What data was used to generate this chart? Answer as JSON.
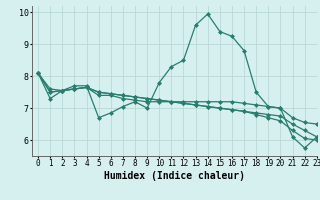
{
  "title": "",
  "xlabel": "Humidex (Indice chaleur)",
  "ylabel": "",
  "bg_color": "#d6f0ef",
  "grid_color": "#b8d8d5",
  "line_color": "#2a7d6e",
  "xlim": [
    -0.5,
    23
  ],
  "ylim": [
    5.5,
    10.2
  ],
  "yticks": [
    6,
    7,
    8,
    9,
    10
  ],
  "xticks": [
    0,
    1,
    2,
    3,
    4,
    5,
    6,
    7,
    8,
    9,
    10,
    11,
    12,
    13,
    14,
    15,
    16,
    17,
    18,
    19,
    20,
    21,
    22,
    23
  ],
  "lines": [
    {
      "x": [
        0,
        1,
        2,
        3,
        4,
        5,
        6,
        7,
        8,
        9,
        10,
        11,
        12,
        13,
        14,
        15,
        16,
        17,
        18,
        19,
        20,
        21,
        22,
        23
      ],
      "y": [
        8.1,
        7.3,
        7.55,
        7.7,
        7.7,
        6.7,
        6.85,
        7.05,
        7.2,
        7.0,
        7.8,
        8.3,
        8.5,
        9.6,
        9.95,
        9.4,
        9.25,
        8.8,
        7.5,
        7.05,
        7.0,
        6.1,
        5.75,
        6.1
      ]
    },
    {
      "x": [
        0,
        1,
        2,
        3,
        4,
        5,
        6,
        7,
        8,
        9,
        10,
        11,
        12,
        13,
        14,
        15,
        16,
        17,
        18,
        19,
        20,
        21,
        22,
        23
      ],
      "y": [
        8.1,
        7.5,
        7.55,
        7.6,
        7.65,
        7.4,
        7.4,
        7.3,
        7.25,
        7.2,
        7.2,
        7.2,
        7.2,
        7.2,
        7.2,
        7.2,
        7.2,
        7.15,
        7.1,
        7.05,
        7.0,
        6.7,
        6.55,
        6.5
      ]
    },
    {
      "x": [
        0,
        1,
        2,
        3,
        4,
        5,
        6,
        7,
        8,
        9,
        10,
        11,
        12,
        13,
        14,
        15,
        16,
        17,
        18,
        19,
        20,
        21,
        22,
        23
      ],
      "y": [
        8.1,
        7.6,
        7.55,
        7.6,
        7.65,
        7.5,
        7.45,
        7.4,
        7.35,
        7.3,
        7.25,
        7.2,
        7.15,
        7.1,
        7.05,
        7.0,
        6.95,
        6.9,
        6.85,
        6.8,
        6.75,
        6.5,
        6.3,
        6.1
      ]
    },
    {
      "x": [
        0,
        1,
        2,
        3,
        4,
        5,
        6,
        7,
        8,
        9,
        10,
        11,
        12,
        13,
        14,
        15,
        16,
        17,
        18,
        19,
        20,
        21,
        22,
        23
      ],
      "y": [
        8.1,
        7.5,
        7.55,
        7.6,
        7.65,
        7.5,
        7.45,
        7.4,
        7.35,
        7.3,
        7.25,
        7.2,
        7.15,
        7.1,
        7.05,
        7.0,
        6.95,
        6.9,
        6.8,
        6.7,
        6.6,
        6.3,
        6.05,
        6.0
      ]
    }
  ],
  "marker": "D",
  "marker_size": 2.0,
  "linewidth": 0.9,
  "xlabel_fontsize": 7,
  "tick_fontsize": 5.5
}
